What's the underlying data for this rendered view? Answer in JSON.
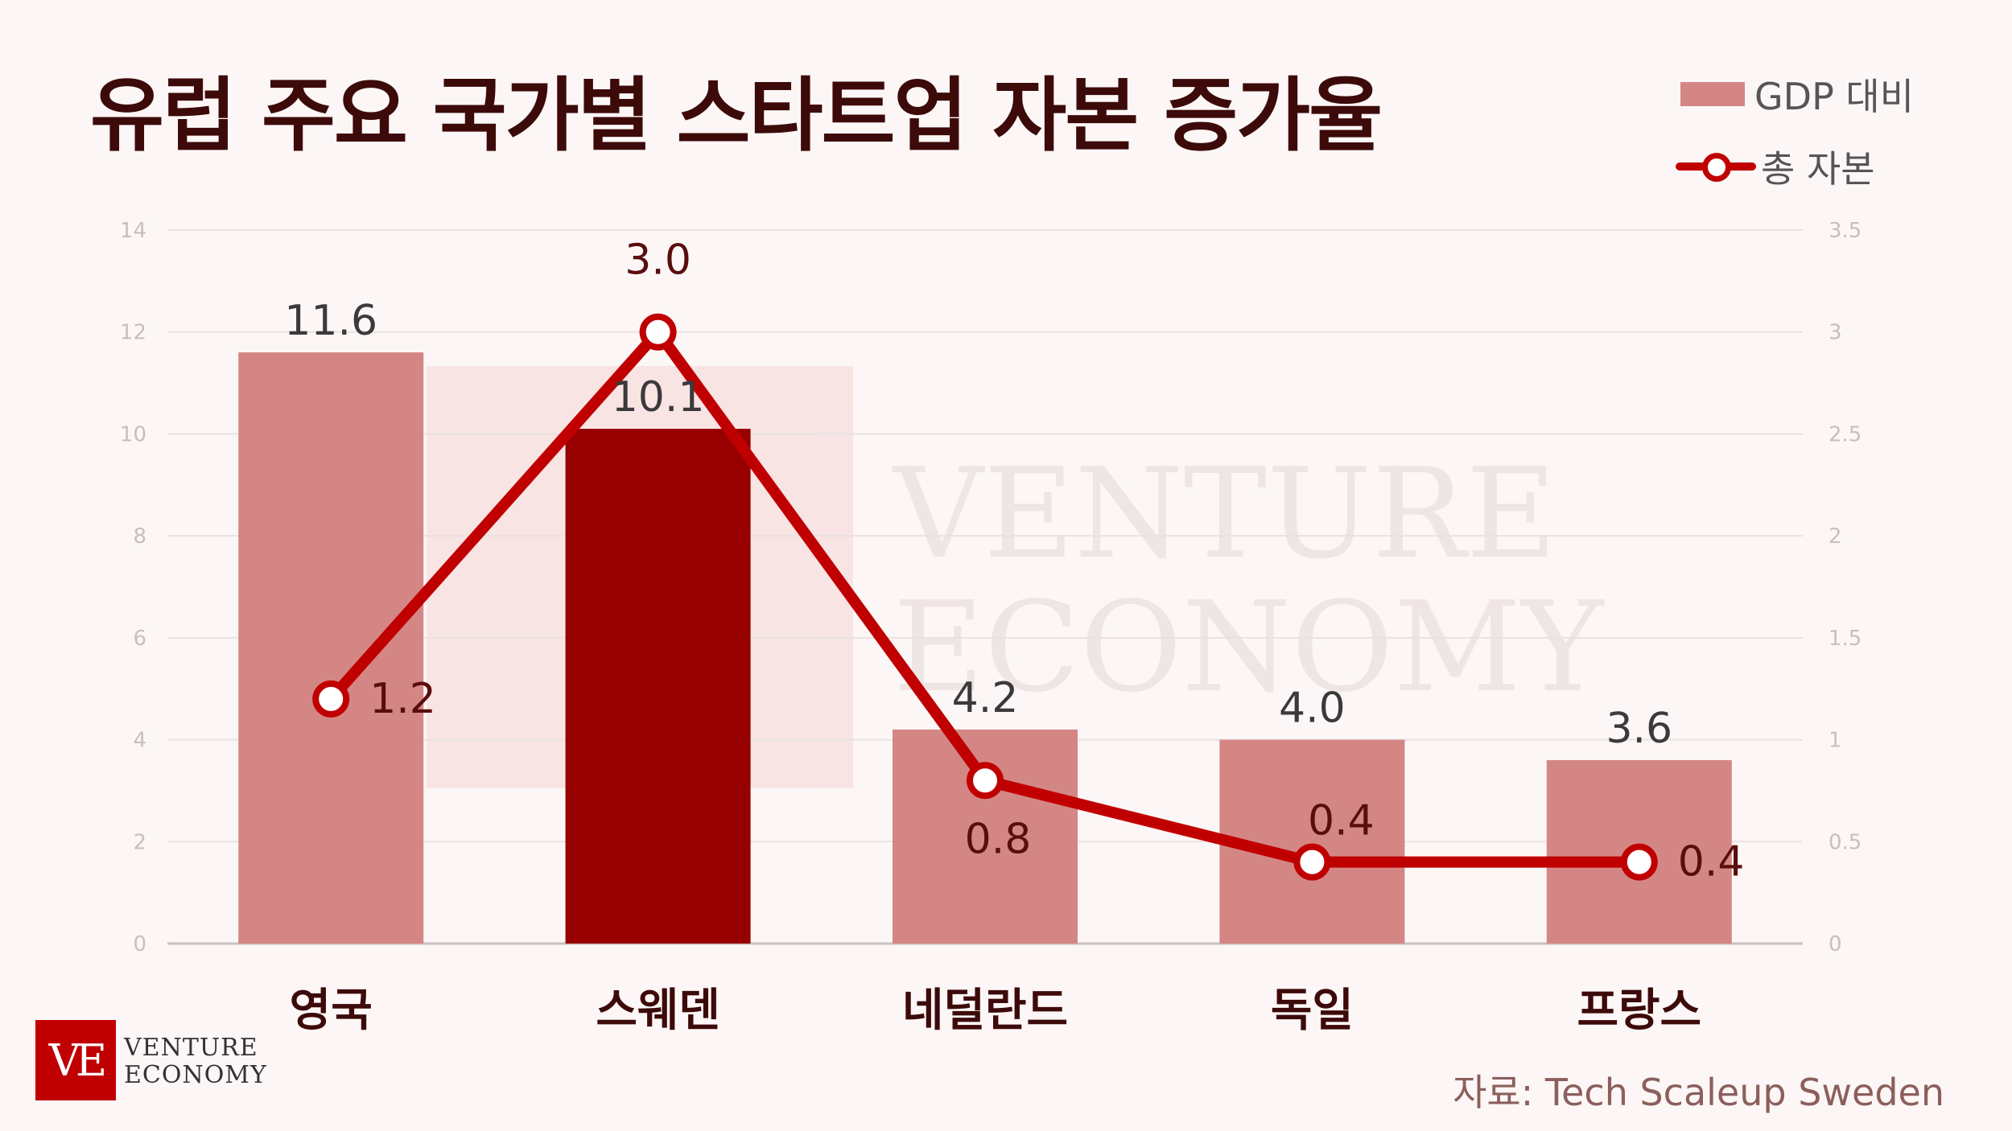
{
  "page": {
    "title": "유럽 주요 국가별 스타트업 자본 증가율",
    "source": "자료: Tech Scaleup Sweden",
    "watermark": {
      "line1": "VENTURE",
      "line2": "ECONOMY"
    },
    "logo": {
      "mark": "VE",
      "line1": "VENTURE",
      "line2": "ECONOMY"
    }
  },
  "chart_data": {
    "type": "bar",
    "categories": [
      "영국",
      "스웨덴",
      "네덜란드",
      "독일",
      "프랑스"
    ],
    "series": [
      {
        "name": "GDP 대비",
        "type": "bar",
        "axis": "left",
        "values": [
          11.6,
          10.1,
          4.2,
          4.0,
          3.6
        ],
        "labels": [
          "11.6",
          "10.1",
          "4.2",
          "4.0",
          "3.6"
        ],
        "color": "#d48685",
        "highlight_index": 1,
        "highlight_color": "#960000"
      },
      {
        "name": "총 자본",
        "type": "line",
        "axis": "right",
        "values": [
          1.2,
          3.0,
          0.8,
          0.4,
          0.4
        ],
        "labels": [
          "1.2",
          "3.0",
          "0.8",
          "0.4",
          "0.4"
        ],
        "color": "#c00000"
      }
    ],
    "y_left": {
      "min": 0,
      "max": 14,
      "ticks": [
        "0",
        "2",
        "4",
        "6",
        "8",
        "10",
        "12",
        "14"
      ]
    },
    "y_right": {
      "min": 0,
      "max": 3.5,
      "ticks": [
        "0",
        "0.5",
        "1",
        "1.5",
        "2",
        "2.5",
        "3",
        "3.5"
      ]
    },
    "grid": true,
    "legend_position": "top-right"
  }
}
